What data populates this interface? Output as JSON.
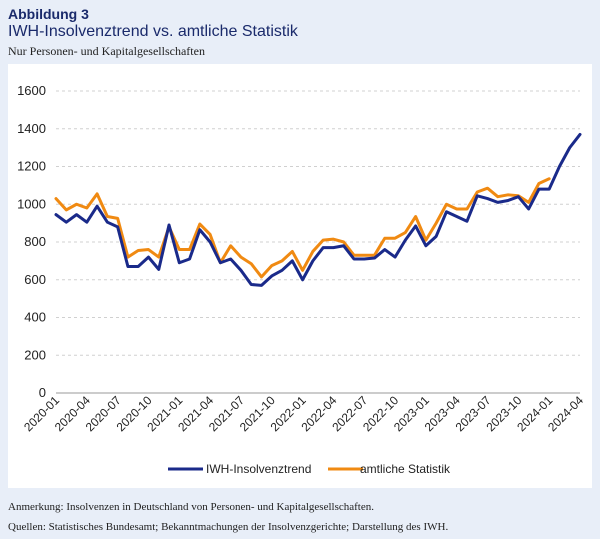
{
  "header": {
    "label": "Abbildung 3",
    "title": "IWH-Insolvenztrend vs. amtliche Statistik",
    "subtitle": "Nur Personen- und Kapitalgesellschaften"
  },
  "footer": {
    "note": "Anmerkung: Insolvenzen in Deutschland von Personen- und Kapitalgesellschaften.",
    "sources": "Quellen: Statistisches Bundesamt; Bekanntmachungen der Insolvenzgerichte; Darstellung des IWH."
  },
  "colors": {
    "iwh": "#1a2a8a",
    "amtlich": "#f08a12",
    "grid": "#d0d0d0",
    "background": "#e8eef8"
  },
  "chart_data": {
    "type": "line",
    "ylim": [
      0,
      1600
    ],
    "yticks": [
      0,
      200,
      400,
      600,
      800,
      1000,
      1200,
      1400,
      1600
    ],
    "grid": true,
    "legend_position": "bottom",
    "x": [
      "2020-01",
      "2020-02",
      "2020-03",
      "2020-04",
      "2020-05",
      "2020-06",
      "2020-07",
      "2020-08",
      "2020-09",
      "2020-10",
      "2020-11",
      "2020-12",
      "2021-01",
      "2021-02",
      "2021-03",
      "2021-04",
      "2021-05",
      "2021-06",
      "2021-07",
      "2021-08",
      "2021-09",
      "2021-10",
      "2021-11",
      "2021-12",
      "2022-01",
      "2022-02",
      "2022-03",
      "2022-04",
      "2022-05",
      "2022-06",
      "2022-07",
      "2022-08",
      "2022-09",
      "2022-10",
      "2022-11",
      "2022-12",
      "2023-01",
      "2023-02",
      "2023-03",
      "2023-04",
      "2023-05",
      "2023-06",
      "2023-07",
      "2023-08",
      "2023-09",
      "2023-10",
      "2023-11",
      "2023-12",
      "2024-01",
      "2024-02",
      "2024-03",
      "2024-04"
    ],
    "xtick_labels": [
      "2020-01",
      "2020-04",
      "2020-07",
      "2020-10",
      "2021-01",
      "2021-04",
      "2021-07",
      "2021-10",
      "2022-01",
      "2022-04",
      "2022-07",
      "2022-10",
      "2023-01",
      "2023-04",
      "2023-07",
      "2023-10",
      "2024-01",
      "2024-04"
    ],
    "series": [
      {
        "name": "IWH-Insolvenztrend",
        "values": [
          945,
          905,
          945,
          905,
          990,
          905,
          880,
          670,
          670,
          720,
          655,
          890,
          690,
          710,
          865,
          800,
          690,
          710,
          650,
          575,
          570,
          620,
          650,
          700,
          600,
          700,
          770,
          770,
          780,
          710,
          710,
          715,
          760,
          720,
          810,
          885,
          780,
          830,
          960,
          935,
          910,
          1045,
          1030,
          1010,
          1020,
          1040,
          975,
          1080,
          1080,
          1200,
          1300,
          1370
        ]
      },
      {
        "name": "amtliche Statistik",
        "values": [
          1030,
          970,
          1000,
          980,
          1055,
          935,
          925,
          720,
          755,
          760,
          720,
          880,
          760,
          760,
          895,
          840,
          690,
          780,
          720,
          685,
          615,
          675,
          700,
          750,
          650,
          750,
          810,
          815,
          800,
          730,
          730,
          730,
          820,
          820,
          850,
          935,
          810,
          900,
          1000,
          975,
          975,
          1065,
          1085,
          1040,
          1050,
          1045,
          1010,
          1110,
          1135,
          null,
          null,
          null
        ]
      }
    ]
  }
}
